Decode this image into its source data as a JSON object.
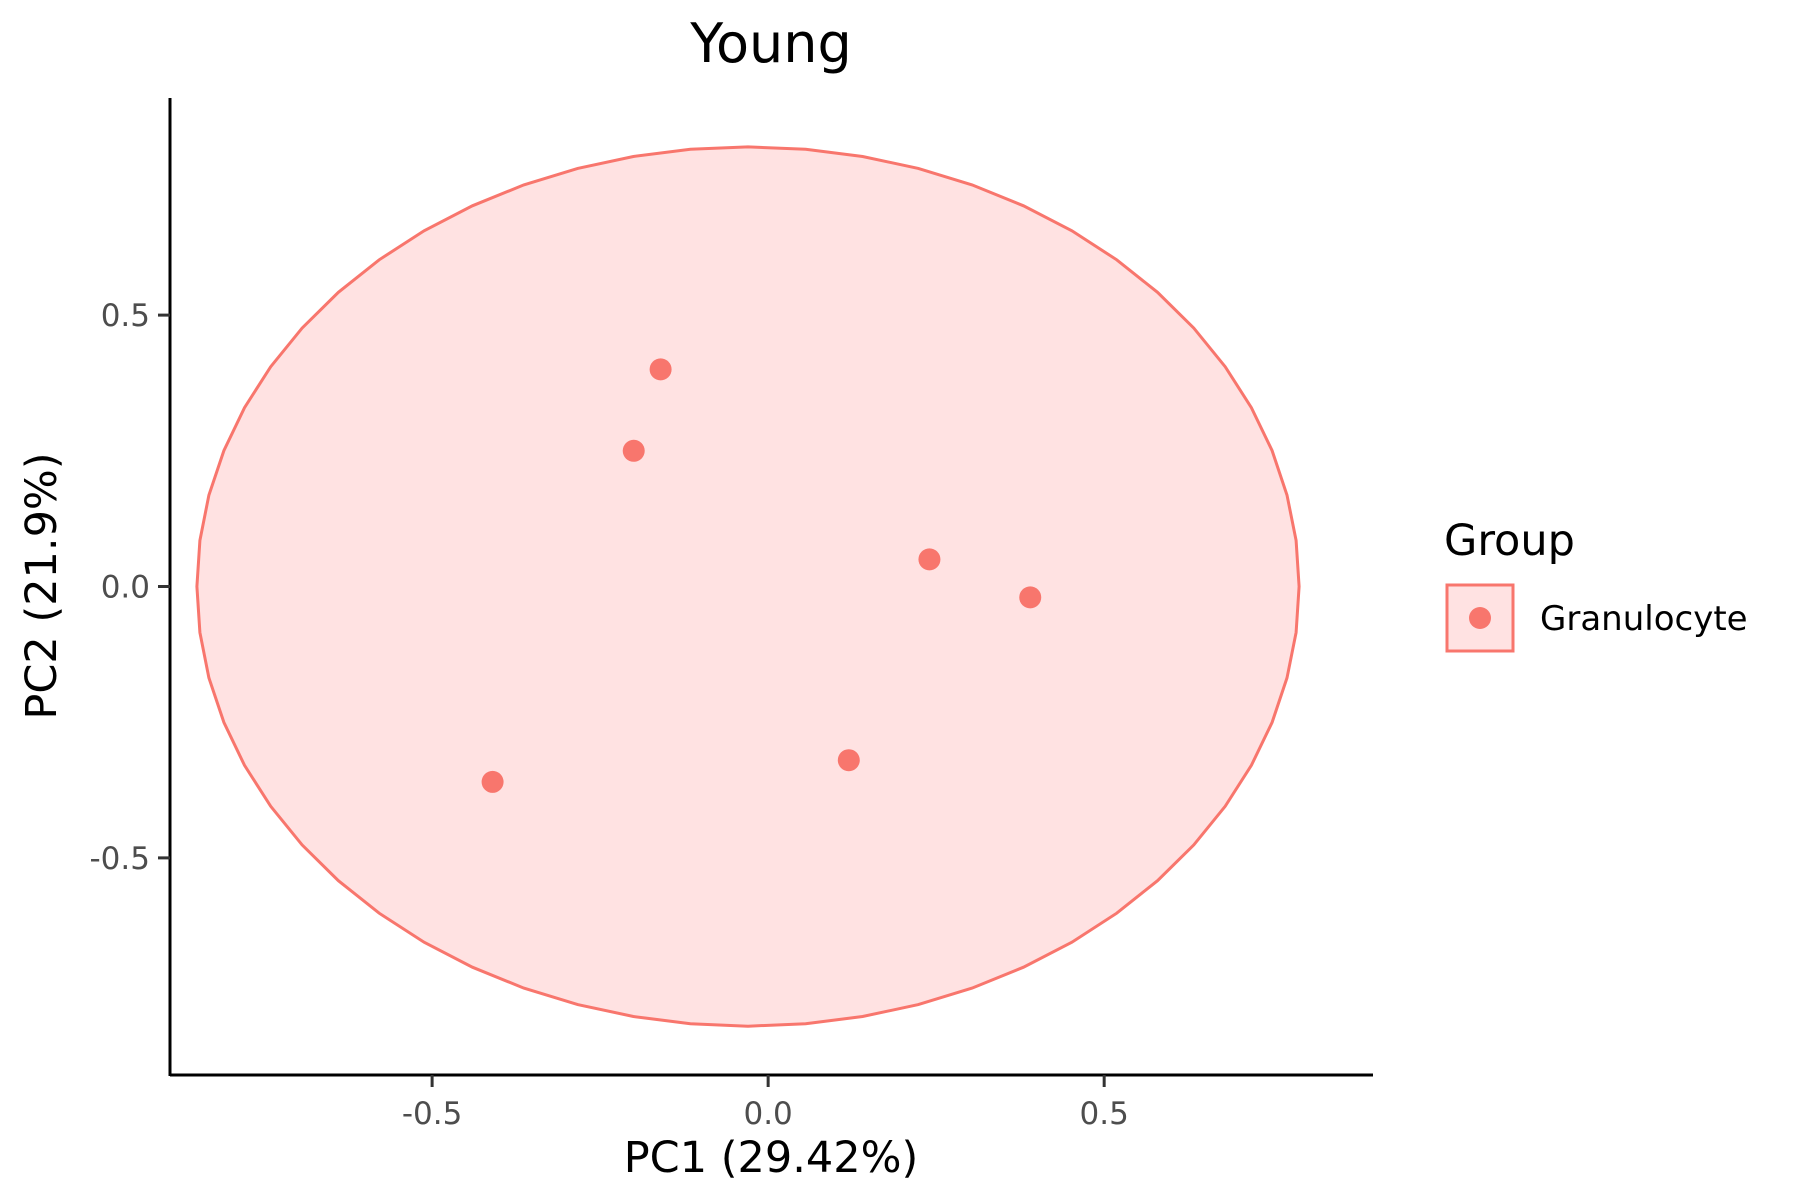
{
  "chart_data": {
    "type": "scatter",
    "title": "Young",
    "xlabel": "PC1 (29.42%)",
    "ylabel": "PC2 (21.9%)",
    "xlim": [
      -0.89,
      0.9
    ],
    "ylim": [
      -0.9,
      0.9
    ],
    "x_ticks": [
      -0.5,
      0.0,
      0.5
    ],
    "x_tick_labels": [
      "-0.5",
      "0.0",
      "0.5"
    ],
    "y_ticks": [
      -0.5,
      0.0,
      0.5
    ],
    "y_tick_labels": [
      "-0.5",
      "0.0",
      "0.5"
    ],
    "grid": false,
    "legend": {
      "title": "Group",
      "position": "right",
      "entries": [
        "Granulocyte"
      ]
    },
    "series": [
      {
        "name": "Granulocyte",
        "color": "#F8766D",
        "fill_color": "#FFE2E2",
        "points": [
          {
            "x": -0.16,
            "y": 0.4
          },
          {
            "x": -0.2,
            "y": 0.25
          },
          {
            "x": 0.24,
            "y": 0.05
          },
          {
            "x": 0.39,
            "y": -0.02
          },
          {
            "x": 0.12,
            "y": -0.32
          },
          {
            "x": -0.41,
            "y": -0.36
          }
        ],
        "ellipse": {
          "center_x": -0.03,
          "center_y": 0.0,
          "semi_axis_x": 0.82,
          "semi_axis_y": 0.81
        }
      }
    ]
  }
}
